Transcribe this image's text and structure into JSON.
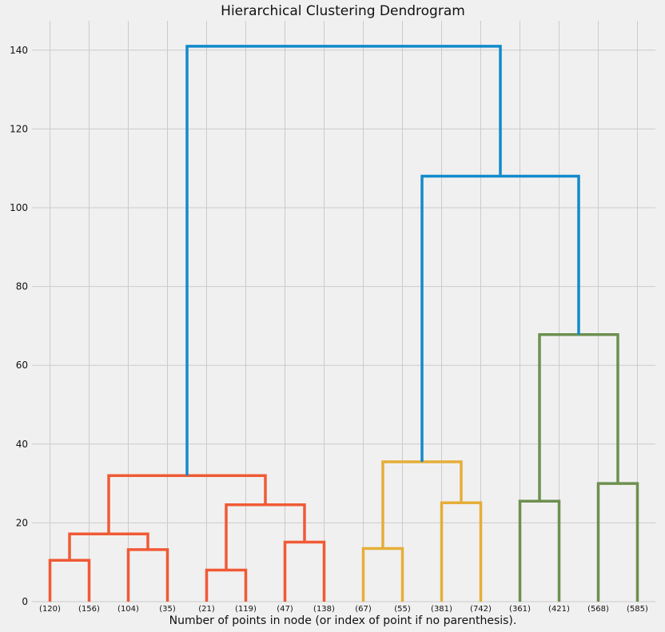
{
  "chart_data": {
    "type": "dendrogram",
    "title": "Hierarchical Clustering Dendrogram",
    "xlabel": "Number of points in node (or index of point if no parenthesis).",
    "ylabel": "",
    "ylim": [
      0,
      147
    ],
    "yticks": [
      0,
      20,
      40,
      60,
      80,
      100,
      120,
      140
    ],
    "grid": true,
    "leaves": [
      "(120)",
      "(156)",
      "(104)",
      "(35)",
      "(21)",
      "(119)",
      "(47)",
      "(138)",
      "(67)",
      "(55)",
      "(381)",
      "(742)",
      "(361)",
      "(421)",
      "(568)",
      "(585)"
    ],
    "colors": {
      "red": "#f05a35",
      "orange": "#e5ae38",
      "green": "#6d904f",
      "blue": "#128acb"
    },
    "merges": [
      {
        "left": {
          "leaf": 0
        },
        "right": {
          "leaf": 1
        },
        "height": 10.5,
        "color": "red"
      },
      {
        "left": {
          "leaf": 2
        },
        "right": {
          "leaf": 3
        },
        "height": 13.2,
        "color": "red"
      },
      {
        "left": {
          "merge": 0
        },
        "right": {
          "merge": 1
        },
        "height": 17.2,
        "color": "red"
      },
      {
        "left": {
          "leaf": 4
        },
        "right": {
          "leaf": 5
        },
        "height": 8.0,
        "color": "red"
      },
      {
        "left": {
          "leaf": 6
        },
        "right": {
          "leaf": 7
        },
        "height": 15.1,
        "color": "red"
      },
      {
        "left": {
          "merge": 3
        },
        "right": {
          "merge": 4
        },
        "height": 24.6,
        "color": "red"
      },
      {
        "left": {
          "merge": 2
        },
        "right": {
          "merge": 5
        },
        "height": 32.0,
        "color": "red"
      },
      {
        "left": {
          "leaf": 8
        },
        "right": {
          "leaf": 9
        },
        "height": 13.5,
        "color": "orange"
      },
      {
        "left": {
          "leaf": 10
        },
        "right": {
          "leaf": 11
        },
        "height": 25.1,
        "color": "orange"
      },
      {
        "left": {
          "merge": 7
        },
        "right": {
          "merge": 8
        },
        "height": 35.5,
        "color": "orange"
      },
      {
        "left": {
          "leaf": 12
        },
        "right": {
          "leaf": 13
        },
        "height": 25.5,
        "color": "green"
      },
      {
        "left": {
          "leaf": 14
        },
        "right": {
          "leaf": 15
        },
        "height": 30.0,
        "color": "green"
      },
      {
        "left": {
          "merge": 10
        },
        "right": {
          "merge": 11
        },
        "height": 67.8,
        "color": "green"
      },
      {
        "left": {
          "merge": 9
        },
        "right": {
          "merge": 12
        },
        "height": 108.0,
        "color": "blue"
      },
      {
        "left": {
          "merge": 6
        },
        "right": {
          "merge": 13
        },
        "height": 141.0,
        "color": "blue"
      }
    ]
  }
}
